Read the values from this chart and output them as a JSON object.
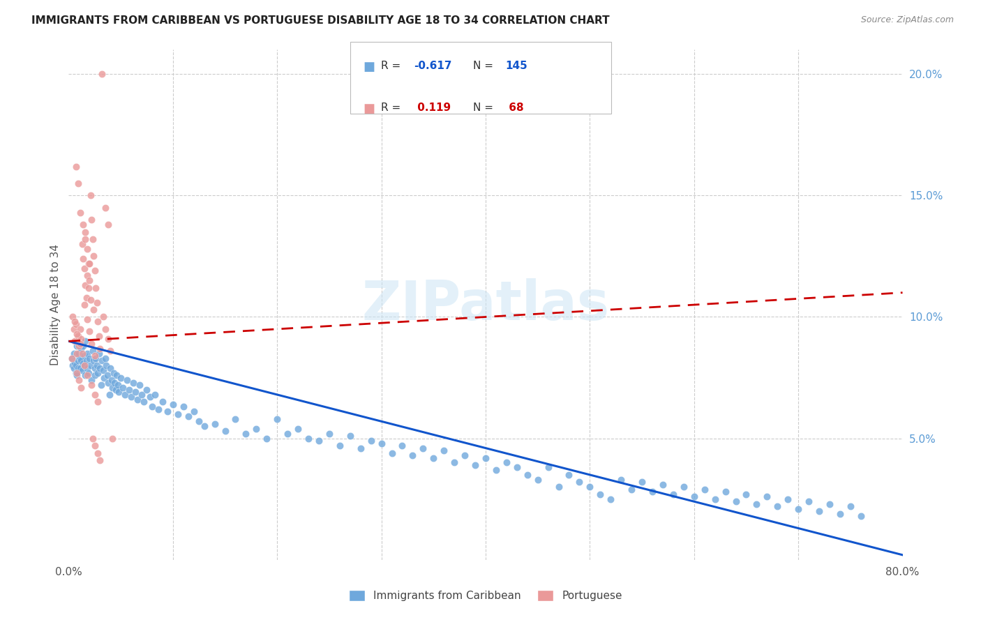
{
  "title": "IMMIGRANTS FROM CARIBBEAN VS PORTUGUESE DISABILITY AGE 18 TO 34 CORRELATION CHART",
  "source_text": "Source: ZipAtlas.com",
  "ylabel": "Disability Age 18 to 34",
  "xlim": [
    0,
    0.8
  ],
  "ylim": [
    0,
    0.21
  ],
  "blue_color": "#6fa8dc",
  "pink_color": "#ea9999",
  "blue_line_color": "#1155cc",
  "pink_line_color": "#cc0000",
  "watermark": "ZIPatlas",
  "blue_intercept": 0.09,
  "blue_slope": -0.11,
  "pink_intercept": 0.09,
  "pink_slope": 0.025,
  "blue_x": [
    0.003,
    0.004,
    0.005,
    0.005,
    0.006,
    0.007,
    0.007,
    0.008,
    0.008,
    0.009,
    0.009,
    0.01,
    0.01,
    0.011,
    0.011,
    0.012,
    0.012,
    0.013,
    0.014,
    0.014,
    0.015,
    0.015,
    0.016,
    0.016,
    0.017,
    0.018,
    0.018,
    0.019,
    0.02,
    0.021,
    0.022,
    0.023,
    0.024,
    0.025,
    0.025,
    0.026,
    0.027,
    0.028,
    0.029,
    0.03,
    0.031,
    0.032,
    0.033,
    0.034,
    0.035,
    0.036,
    0.037,
    0.038,
    0.039,
    0.04,
    0.041,
    0.042,
    0.043,
    0.044,
    0.045,
    0.046,
    0.047,
    0.048,
    0.05,
    0.052,
    0.054,
    0.056,
    0.058,
    0.06,
    0.062,
    0.064,
    0.066,
    0.068,
    0.07,
    0.072,
    0.075,
    0.078,
    0.08,
    0.083,
    0.086,
    0.09,
    0.095,
    0.1,
    0.105,
    0.11,
    0.115,
    0.12,
    0.125,
    0.13,
    0.14,
    0.15,
    0.16,
    0.17,
    0.18,
    0.19,
    0.2,
    0.21,
    0.22,
    0.23,
    0.24,
    0.25,
    0.26,
    0.27,
    0.28,
    0.29,
    0.3,
    0.31,
    0.32,
    0.33,
    0.34,
    0.35,
    0.36,
    0.37,
    0.38,
    0.39,
    0.4,
    0.41,
    0.42,
    0.43,
    0.44,
    0.45,
    0.46,
    0.47,
    0.48,
    0.49,
    0.5,
    0.51,
    0.52,
    0.53,
    0.54,
    0.55,
    0.56,
    0.57,
    0.58,
    0.59,
    0.6,
    0.61,
    0.62,
    0.63,
    0.64,
    0.65,
    0.66,
    0.67,
    0.68,
    0.69,
    0.7,
    0.71,
    0.72,
    0.73,
    0.74,
    0.75,
    0.76
  ],
  "blue_y": [
    0.083,
    0.08,
    0.085,
    0.079,
    0.081,
    0.08,
    0.077,
    0.088,
    0.076,
    0.082,
    0.079,
    0.084,
    0.085,
    0.083,
    0.079,
    0.082,
    0.087,
    0.078,
    0.081,
    0.088,
    0.08,
    0.084,
    0.076,
    0.09,
    0.082,
    0.079,
    0.085,
    0.077,
    0.083,
    0.08,
    0.074,
    0.086,
    0.082,
    0.079,
    0.076,
    0.083,
    0.08,
    0.077,
    0.085,
    0.079,
    0.072,
    0.082,
    0.078,
    0.075,
    0.083,
    0.08,
    0.076,
    0.073,
    0.068,
    0.079,
    0.074,
    0.071,
    0.077,
    0.073,
    0.07,
    0.076,
    0.072,
    0.069,
    0.075,
    0.071,
    0.068,
    0.074,
    0.07,
    0.067,
    0.073,
    0.069,
    0.066,
    0.072,
    0.068,
    0.065,
    0.07,
    0.067,
    0.063,
    0.068,
    0.062,
    0.065,
    0.061,
    0.064,
    0.06,
    0.063,
    0.059,
    0.061,
    0.057,
    0.055,
    0.056,
    0.053,
    0.058,
    0.052,
    0.054,
    0.05,
    0.058,
    0.052,
    0.054,
    0.05,
    0.049,
    0.052,
    0.047,
    0.051,
    0.046,
    0.049,
    0.048,
    0.044,
    0.047,
    0.043,
    0.046,
    0.042,
    0.045,
    0.04,
    0.043,
    0.039,
    0.042,
    0.037,
    0.04,
    0.038,
    0.035,
    0.033,
    0.038,
    0.03,
    0.035,
    0.032,
    0.03,
    0.027,
    0.025,
    0.033,
    0.029,
    0.032,
    0.028,
    0.031,
    0.027,
    0.03,
    0.026,
    0.029,
    0.025,
    0.028,
    0.024,
    0.027,
    0.023,
    0.026,
    0.022,
    0.025,
    0.021,
    0.024,
    0.02,
    0.023,
    0.019,
    0.022,
    0.018
  ],
  "pink_x": [
    0.003,
    0.004,
    0.005,
    0.006,
    0.007,
    0.008,
    0.009,
    0.01,
    0.011,
    0.012,
    0.013,
    0.014,
    0.015,
    0.016,
    0.017,
    0.018,
    0.019,
    0.02,
    0.021,
    0.022,
    0.023,
    0.024,
    0.025,
    0.026,
    0.027,
    0.028,
    0.029,
    0.03,
    0.008,
    0.01,
    0.012,
    0.015,
    0.018,
    0.02,
    0.022,
    0.025,
    0.007,
    0.009,
    0.011,
    0.014,
    0.016,
    0.019,
    0.021,
    0.024,
    0.006,
    0.008,
    0.011,
    0.013,
    0.016,
    0.018,
    0.02,
    0.023,
    0.025,
    0.028,
    0.03,
    0.033,
    0.035,
    0.038,
    0.04,
    0.015,
    0.018,
    0.022,
    0.025,
    0.028,
    0.032,
    0.035,
    0.038,
    0.042
  ],
  "pink_y": [
    0.083,
    0.1,
    0.095,
    0.09,
    0.097,
    0.085,
    0.092,
    0.088,
    0.095,
    0.091,
    0.13,
    0.124,
    0.12,
    0.113,
    0.108,
    0.117,
    0.122,
    0.115,
    0.15,
    0.14,
    0.132,
    0.125,
    0.119,
    0.112,
    0.106,
    0.098,
    0.092,
    0.087,
    0.077,
    0.074,
    0.071,
    0.105,
    0.099,
    0.094,
    0.089,
    0.084,
    0.162,
    0.155,
    0.143,
    0.138,
    0.132,
    0.112,
    0.107,
    0.103,
    0.098,
    0.093,
    0.089,
    0.085,
    0.135,
    0.128,
    0.122,
    0.05,
    0.047,
    0.044,
    0.041,
    0.1,
    0.095,
    0.091,
    0.086,
    0.08,
    0.076,
    0.072,
    0.068,
    0.065,
    0.2,
    0.145,
    0.138,
    0.05
  ]
}
